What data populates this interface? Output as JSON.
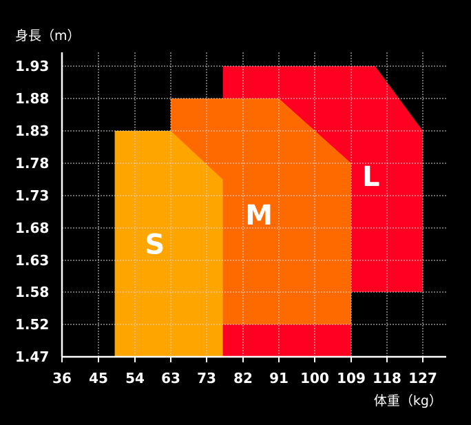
{
  "chart_data": {
    "type": "area",
    "ylabel": "身長（m）",
    "xlabel": "体重（kg）",
    "x_ticks": [
      "36",
      "45",
      "54",
      "63",
      "73",
      "82",
      "91",
      "100",
      "109",
      "118",
      "127"
    ],
    "y_ticks": [
      "1.47",
      "1.52",
      "1.58",
      "1.63",
      "1.68",
      "1.73",
      "1.78",
      "1.83",
      "1.88",
      "1.93"
    ],
    "grid": true,
    "regions": [
      {
        "name": "L",
        "color": "#ff0022",
        "polygon": [
          [
            77,
            1.47
          ],
          [
            77,
            1.93
          ],
          [
            115,
            1.93
          ],
          [
            127,
            1.83
          ],
          [
            127,
            1.58
          ],
          [
            109,
            1.58
          ],
          [
            109,
            1.47
          ]
        ],
        "label_at": [
          114,
          1.76
        ]
      },
      {
        "name": "M",
        "color": "#ff6a00",
        "polygon": [
          [
            63,
            1.47
          ],
          [
            63,
            1.88
          ],
          [
            91,
            1.88
          ],
          [
            109,
            1.78
          ],
          [
            109,
            1.52
          ],
          [
            63,
            1.52
          ]
        ],
        "label_at": [
          86,
          1.7
        ]
      },
      {
        "name": "S",
        "color": "#ffa500",
        "polygon": [
          [
            49,
            1.47
          ],
          [
            49,
            1.83
          ],
          [
            63,
            1.83
          ],
          [
            77,
            1.755
          ],
          [
            77,
            1.47
          ]
        ],
        "label_at": [
          59,
          1.655
        ]
      }
    ]
  }
}
